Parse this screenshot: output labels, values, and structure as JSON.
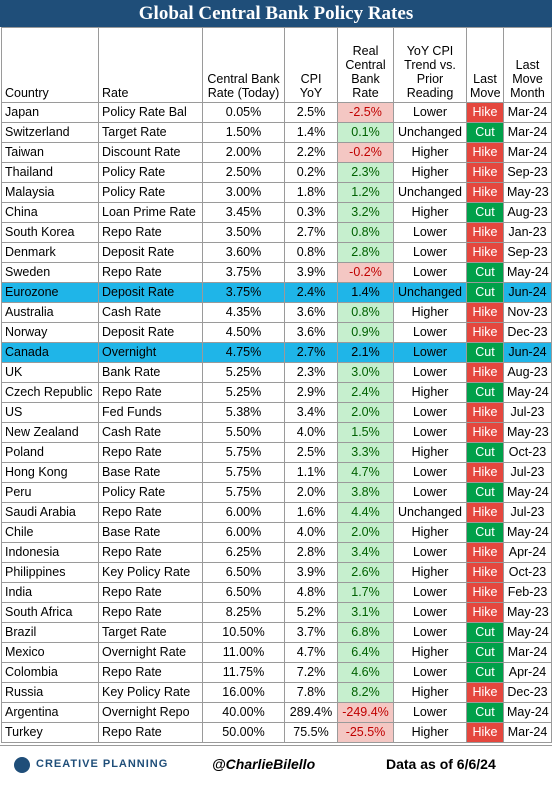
{
  "title": "Global Central Bank Policy Rates",
  "headers": [
    "Country",
    "Rate",
    "Central Bank Rate (Today)",
    "CPI YoY",
    "Real Central Bank Rate",
    "YoY CPI Trend vs. Prior Reading",
    "Last Move",
    "Last Move Month"
  ],
  "chart_data": {
    "type": "table",
    "title": "Global Central Bank Policy Rates",
    "columns": [
      "Country",
      "Rate",
      "Central Bank Rate (Today)",
      "CPI YoY",
      "Real Central Bank Rate",
      "YoY CPI Trend vs. Prior Reading",
      "Last Move",
      "Last Move Month"
    ],
    "rows": [
      {
        "country": "Japan",
        "rate": "Policy Rate Bal",
        "cb_rate": "0.05%",
        "cpi": "2.5%",
        "real": "-2.5%",
        "trend": "Lower",
        "move": "Hike",
        "month": "Mar-24"
      },
      {
        "country": "Switzerland",
        "rate": "Target Rate",
        "cb_rate": "1.50%",
        "cpi": "1.4%",
        "real": "0.1%",
        "trend": "Unchanged",
        "move": "Cut",
        "month": "Mar-24"
      },
      {
        "country": "Taiwan",
        "rate": "Discount Rate",
        "cb_rate": "2.00%",
        "cpi": "2.2%",
        "real": "-0.2%",
        "trend": "Higher",
        "move": "Hike",
        "month": "Mar-24"
      },
      {
        "country": "Thailand",
        "rate": "Policy Rate",
        "cb_rate": "2.50%",
        "cpi": "0.2%",
        "real": "2.3%",
        "trend": "Higher",
        "move": "Hike",
        "month": "Sep-23"
      },
      {
        "country": "Malaysia",
        "rate": "Policy Rate",
        "cb_rate": "3.00%",
        "cpi": "1.8%",
        "real": "1.2%",
        "trend": "Unchanged",
        "move": "Hike",
        "month": "May-23"
      },
      {
        "country": "China",
        "rate": "Loan Prime Rate",
        "cb_rate": "3.45%",
        "cpi": "0.3%",
        "real": "3.2%",
        "trend": "Higher",
        "move": "Cut",
        "month": "Aug-23"
      },
      {
        "country": "South Korea",
        "rate": "Repo Rate",
        "cb_rate": "3.50%",
        "cpi": "2.7%",
        "real": "0.8%",
        "trend": "Lower",
        "move": "Hike",
        "month": "Jan-23"
      },
      {
        "country": "Denmark",
        "rate": "Deposit Rate",
        "cb_rate": "3.60%",
        "cpi": "0.8%",
        "real": "2.8%",
        "trend": "Lower",
        "move": "Hike",
        "month": "Sep-23"
      },
      {
        "country": "Sweden",
        "rate": "Repo Rate",
        "cb_rate": "3.75%",
        "cpi": "3.9%",
        "real": "-0.2%",
        "trend": "Lower",
        "move": "Cut",
        "month": "May-24"
      },
      {
        "country": "Eurozone",
        "rate": "Deposit Rate",
        "cb_rate": "3.75%",
        "cpi": "2.4%",
        "real": "1.4%",
        "trend": "Unchanged",
        "move": "Cut",
        "month": "Jun-24",
        "highlight": true
      },
      {
        "country": "Australia",
        "rate": "Cash Rate",
        "cb_rate": "4.35%",
        "cpi": "3.6%",
        "real": "0.8%",
        "trend": "Higher",
        "move": "Hike",
        "month": "Nov-23"
      },
      {
        "country": "Norway",
        "rate": "Deposit Rate",
        "cb_rate": "4.50%",
        "cpi": "3.6%",
        "real": "0.9%",
        "trend": "Lower",
        "move": "Hike",
        "month": "Dec-23"
      },
      {
        "country": "Canada",
        "rate": "Overnight",
        "cb_rate": "4.75%",
        "cpi": "2.7%",
        "real": "2.1%",
        "trend": "Lower",
        "move": "Cut",
        "month": "Jun-24",
        "highlight": true
      },
      {
        "country": "UK",
        "rate": "Bank Rate",
        "cb_rate": "5.25%",
        "cpi": "2.3%",
        "real": "3.0%",
        "trend": "Lower",
        "move": "Hike",
        "month": "Aug-23"
      },
      {
        "country": "Czech Republic",
        "rate": "Repo Rate",
        "cb_rate": "5.25%",
        "cpi": "2.9%",
        "real": "2.4%",
        "trend": "Higher",
        "move": "Cut",
        "month": "May-24"
      },
      {
        "country": "US",
        "rate": "Fed Funds",
        "cb_rate": "5.38%",
        "cpi": "3.4%",
        "real": "2.0%",
        "trend": "Lower",
        "move": "Hike",
        "month": "Jul-23"
      },
      {
        "country": "New Zealand",
        "rate": "Cash Rate",
        "cb_rate": "5.50%",
        "cpi": "4.0%",
        "real": "1.5%",
        "trend": "Lower",
        "move": "Hike",
        "month": "May-23"
      },
      {
        "country": "Poland",
        "rate": "Repo Rate",
        "cb_rate": "5.75%",
        "cpi": "2.5%",
        "real": "3.3%",
        "trend": "Higher",
        "move": "Cut",
        "month": "Oct-23"
      },
      {
        "country": "Hong Kong",
        "rate": "Base Rate",
        "cb_rate": "5.75%",
        "cpi": "1.1%",
        "real": "4.7%",
        "trend": "Lower",
        "move": "Hike",
        "month": "Jul-23"
      },
      {
        "country": "Peru",
        "rate": "Policy Rate",
        "cb_rate": "5.75%",
        "cpi": "2.0%",
        "real": "3.8%",
        "trend": "Lower",
        "move": "Cut",
        "month": "May-24"
      },
      {
        "country": "Saudi Arabia",
        "rate": "Repo Rate",
        "cb_rate": "6.00%",
        "cpi": "1.6%",
        "real": "4.4%",
        "trend": "Unchanged",
        "move": "Hike",
        "month": "Jul-23"
      },
      {
        "country": "Chile",
        "rate": "Base Rate",
        "cb_rate": "6.00%",
        "cpi": "4.0%",
        "real": "2.0%",
        "trend": "Higher",
        "move": "Cut",
        "month": "May-24"
      },
      {
        "country": "Indonesia",
        "rate": "Repo Rate",
        "cb_rate": "6.25%",
        "cpi": "2.8%",
        "real": "3.4%",
        "trend": "Lower",
        "move": "Hike",
        "month": "Apr-24"
      },
      {
        "country": "Philippines",
        "rate": "Key Policy Rate",
        "cb_rate": "6.50%",
        "cpi": "3.9%",
        "real": "2.6%",
        "trend": "Higher",
        "move": "Hike",
        "month": "Oct-23"
      },
      {
        "country": "India",
        "rate": "Repo Rate",
        "cb_rate": "6.50%",
        "cpi": "4.8%",
        "real": "1.7%",
        "trend": "Lower",
        "move": "Hike",
        "month": "Feb-23"
      },
      {
        "country": "South Africa",
        "rate": "Repo Rate",
        "cb_rate": "8.25%",
        "cpi": "5.2%",
        "real": "3.1%",
        "trend": "Lower",
        "move": "Hike",
        "month": "May-23"
      },
      {
        "country": "Brazil",
        "rate": "Target Rate",
        "cb_rate": "10.50%",
        "cpi": "3.7%",
        "real": "6.8%",
        "trend": "Lower",
        "move": "Cut",
        "month": "May-24"
      },
      {
        "country": "Mexico",
        "rate": "Overnight Rate",
        "cb_rate": "11.00%",
        "cpi": "4.7%",
        "real": "6.4%",
        "trend": "Higher",
        "move": "Cut",
        "month": "Mar-24"
      },
      {
        "country": "Colombia",
        "rate": "Repo Rate",
        "cb_rate": "11.75%",
        "cpi": "7.2%",
        "real": "4.6%",
        "trend": "Lower",
        "move": "Cut",
        "month": "Apr-24"
      },
      {
        "country": "Russia",
        "rate": "Key Policy Rate",
        "cb_rate": "16.00%",
        "cpi": "7.8%",
        "real": "8.2%",
        "trend": "Higher",
        "move": "Hike",
        "month": "Dec-23"
      },
      {
        "country": "Argentina",
        "rate": "Overnight Repo",
        "cb_rate": "40.00%",
        "cpi": "289.4%",
        "real": "-249.4%",
        "trend": "Lower",
        "move": "Cut",
        "month": "May-24"
      },
      {
        "country": "Turkey",
        "rate": "Repo Rate",
        "cb_rate": "50.00%",
        "cpi": "75.5%",
        "real": "-25.5%",
        "trend": "Higher",
        "move": "Hike",
        "month": "Mar-24"
      }
    ]
  },
  "footer": {
    "logo_text": "CREATIVE PLANNING",
    "handle": "@CharlieBilello",
    "as_of": "Data as of 6/6/24"
  }
}
